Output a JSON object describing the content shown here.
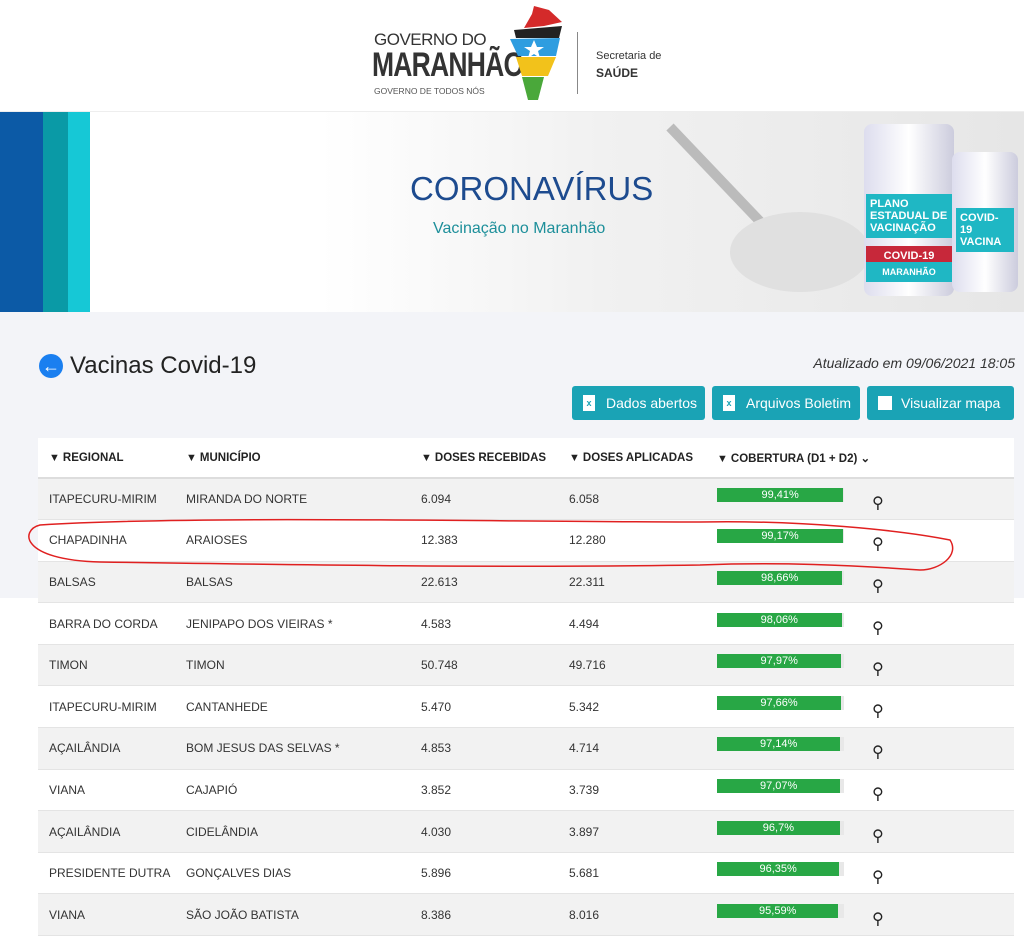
{
  "logo": {
    "line1": "GOVERNO DO",
    "line2": "MARANHÃO",
    "line3": "GOVERNO DE TODOS NÓS",
    "sec1": "Secretaria de",
    "sec2": "SAÚDE"
  },
  "banner": {
    "title": "CORONAVÍRUS",
    "subtitle": "Vacinação no Maranhão",
    "vial1": "PLANO ESTADUAL DE VACINAÇÃO",
    "vial1_band": "COVID-19",
    "vial1_foot": "MARANHÃO",
    "vial2": "COVID-19 VACINA"
  },
  "page": {
    "title": "Vacinas Covid-19",
    "updated": "Atualizado em 09/06/2021 18:05"
  },
  "buttons": {
    "open_data": "Dados abertos",
    "bulletin": "Arquivos Boletim",
    "map": "Visualizar mapa"
  },
  "table": {
    "headers": [
      "REGIONAL",
      "MUNICÍPIO",
      "DOSES RECEBIDAS",
      "DOSES APLICADAS",
      "COBERTURA (D1 + D2)"
    ],
    "sort_indicator": "⌄",
    "rows": [
      {
        "regional": "ITAPECURU-MIRIM",
        "municipio": "MIRANDA DO NORTE",
        "recebidas": "6.094",
        "aplicadas": "6.058",
        "cobertura": "99,41%",
        "pct": 99.41
      },
      {
        "regional": "CHAPADINHA",
        "municipio": "ARAIOSES",
        "recebidas": "12.383",
        "aplicadas": "12.280",
        "cobertura": "99,17%",
        "pct": 99.17
      },
      {
        "regional": "BALSAS",
        "municipio": "BALSAS",
        "recebidas": "22.613",
        "aplicadas": "22.311",
        "cobertura": "98,66%",
        "pct": 98.66
      },
      {
        "regional": "BARRA DO CORDA",
        "municipio": "JENIPAPO DOS VIEIRAS *",
        "recebidas": "4.583",
        "aplicadas": "4.494",
        "cobertura": "98,06%",
        "pct": 98.06
      },
      {
        "regional": "TIMON",
        "municipio": "TIMON",
        "recebidas": "50.748",
        "aplicadas": "49.716",
        "cobertura": "97,97%",
        "pct": 97.97
      },
      {
        "regional": "ITAPECURU-MIRIM",
        "municipio": "CANTANHEDE",
        "recebidas": "5.470",
        "aplicadas": "5.342",
        "cobertura": "97,66%",
        "pct": 97.66
      },
      {
        "regional": "AÇAILÂNDIA",
        "municipio": "BOM JESUS DAS SELVAS *",
        "recebidas": "4.853",
        "aplicadas": "4.714",
        "cobertura": "97,14%",
        "pct": 97.14
      },
      {
        "regional": "VIANA",
        "municipio": "CAJAPIÓ",
        "recebidas": "3.852",
        "aplicadas": "3.739",
        "cobertura": "97,07%",
        "pct": 97.07
      },
      {
        "regional": "AÇAILÂNDIA",
        "municipio": "CIDELÂNDIA",
        "recebidas": "4.030",
        "aplicadas": "3.897",
        "cobertura": "96,7%",
        "pct": 96.7
      },
      {
        "regional": "PRESIDENTE DUTRA",
        "municipio": "GONÇALVES DIAS",
        "recebidas": "5.896",
        "aplicadas": "5.681",
        "cobertura": "96,35%",
        "pct": 96.35
      },
      {
        "regional": "VIANA",
        "municipio": "SÃO JOÃO BATISTA",
        "recebidas": "8.386",
        "aplicadas": "8.016",
        "cobertura": "95,59%",
        "pct": 95.59
      }
    ]
  },
  "colors": {
    "button": "#1aa3b5",
    "bar": "#28a745",
    "annotation": "#e02020",
    "title": "#1d4b8f"
  }
}
